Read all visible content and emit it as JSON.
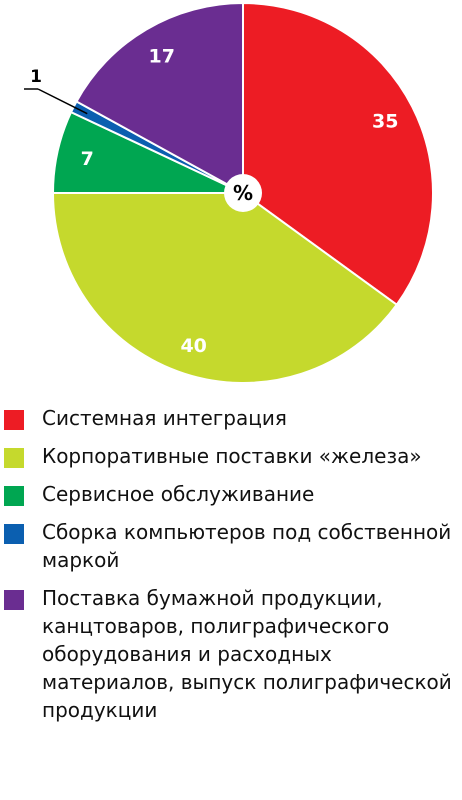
{
  "chart_data": {
    "type": "pie",
    "center_label": "%",
    "slices": [
      {
        "label": "Системная интеграция",
        "value": 35,
        "color": "#ed1c24"
      },
      {
        "label": "Корпоративные поставки «железа»",
        "value": 40,
        "color": "#c5d92d"
      },
      {
        "label": "Сервисное обслуживание",
        "value": 7,
        "color": "#00a651"
      },
      {
        "label": "Сборка компьютеров под собственной маркой",
        "value": 1,
        "color": "#0b5fb0"
      },
      {
        "label": "Поставка бумажной продукции, канцтоваров, полиграфического оборудования и расходных материалов, выпуск полиграфической продукции",
        "value": 17,
        "color": "#6a2d91"
      }
    ]
  },
  "legend": {
    "items": [
      {
        "label": "Системная интеграция",
        "color": "#ed1c24"
      },
      {
        "label": "Корпоративные поставки «железа»",
        "color": "#c5d92d"
      },
      {
        "label": "Сервисное обслуживание",
        "color": "#00a651"
      },
      {
        "label": "Сборка компьютеров под собственной маркой",
        "color": "#0b5fb0"
      },
      {
        "label": "Поставка бумажной продукции, канцтоваров, полиграфического оборудования и расходных материалов, выпуск полиграфической продукции",
        "color": "#6a2d91"
      }
    ]
  }
}
